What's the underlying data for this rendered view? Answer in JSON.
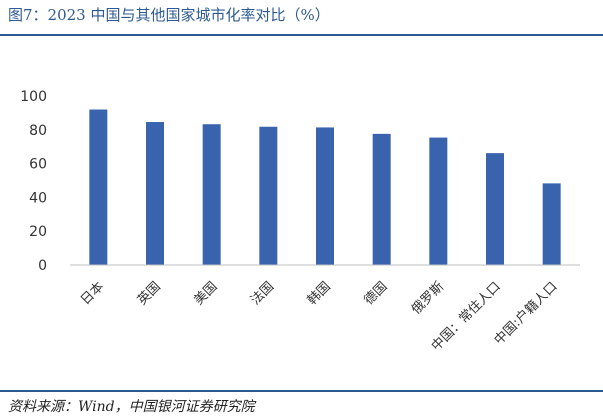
{
  "figure": {
    "title": "图7：2023 中国与其他国家城市化率对比（%）",
    "source": "资料来源：Wind，中国银河证券研究院"
  },
  "chart_data": {
    "type": "bar",
    "title": "",
    "xlabel": "",
    "ylabel": "",
    "categories": [
      "日本",
      "英国",
      "美国",
      "法国",
      "韩国",
      "德国",
      "俄罗斯",
      "中国：常住人口",
      "中国:户籍人口"
    ],
    "values": [
      92.0,
      84.6,
      83.3,
      81.8,
      81.4,
      77.6,
      75.4,
      66.2,
      48.3
    ],
    "ylim": [
      0,
      100
    ],
    "yticks": [
      0,
      20,
      40,
      60,
      80,
      100
    ],
    "grid": false,
    "legend": "none",
    "bar_color": "#3a63ad",
    "axis_color": "#bfbfbf"
  }
}
